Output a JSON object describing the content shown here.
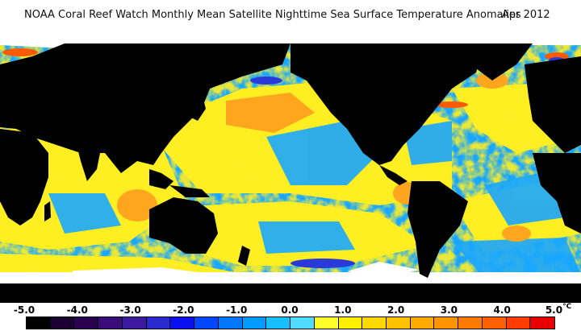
{
  "title": {
    "main": "NOAA Coral Reef Watch Monthly Mean Satellite Nighttime Sea Surface Temperature Anomalies",
    "date": "Apr 2012"
  },
  "colorbar": {
    "labels": [
      "-5.0",
      "-4.0",
      "-3.0",
      "-2.0",
      "-1.0",
      "0.0",
      "1.0",
      "2.0",
      "3.0",
      "4.0",
      "5.0"
    ],
    "unit": "°C",
    "min": -5.0,
    "max": 5.0,
    "colors": [
      "#000000",
      "#1a0033",
      "#2a0050",
      "#3a0c7a",
      "#3b1aa0",
      "#2a2ad0",
      "#0a10f0",
      "#0047ff",
      "#0077ff",
      "#009cff",
      "#18bfff",
      "#50dcff",
      "#ffff2a",
      "#fff000",
      "#ffd800",
      "#ffc200",
      "#ffaa00",
      "#ff9400",
      "#ff7a00",
      "#ff6000",
      "#ff3d00",
      "#e80000"
    ]
  },
  "map": {
    "land_color": "#000000",
    "ice_color": "#ffffff",
    "ocean_colors": {
      "near_zero_cool": "#1aa7ff",
      "near_zero_warm": "#ffee22",
      "warm": "#ffb020",
      "hot": "#ff6a00",
      "cold": "#2a3ad8"
    }
  }
}
